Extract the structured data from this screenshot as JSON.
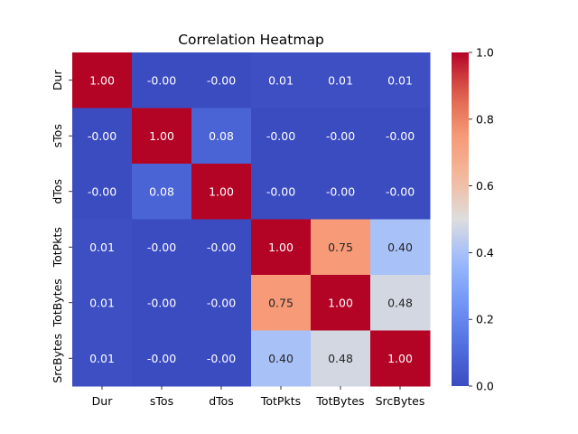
{
  "chart_data": {
    "type": "heatmap",
    "title": "Correlation Heatmap",
    "xlabel": "",
    "ylabel": "",
    "x_labels": [
      "Dur",
      "sTos",
      "dTos",
      "TotPkts",
      "TotBytes",
      "SrcBytes"
    ],
    "y_labels": [
      "Dur",
      "sTos",
      "dTos",
      "TotPkts",
      "TotBytes",
      "SrcBytes"
    ],
    "values": [
      [
        1.0,
        -0.0,
        -0.0,
        0.01,
        0.01,
        0.01
      ],
      [
        -0.0,
        1.0,
        0.08,
        -0.0,
        -0.0,
        -0.0
      ],
      [
        -0.0,
        0.08,
        1.0,
        -0.0,
        -0.0,
        -0.0
      ],
      [
        0.01,
        -0.0,
        -0.0,
        1.0,
        0.75,
        0.4
      ],
      [
        0.01,
        -0.0,
        -0.0,
        0.75,
        1.0,
        0.48
      ],
      [
        0.01,
        -0.0,
        -0.0,
        0.4,
        0.48,
        1.0
      ]
    ],
    "value_labels": [
      [
        "1.00",
        "-0.00",
        "-0.00",
        "0.01",
        "0.01",
        "0.01"
      ],
      [
        "-0.00",
        "1.00",
        "0.08",
        "-0.00",
        "-0.00",
        "-0.00"
      ],
      [
        "-0.00",
        "0.08",
        "1.00",
        "-0.00",
        "-0.00",
        "-0.00"
      ],
      [
        "0.01",
        "-0.00",
        "-0.00",
        "1.00",
        "0.75",
        "0.40"
      ],
      [
        "0.01",
        "-0.00",
        "-0.00",
        "0.75",
        "1.00",
        "0.48"
      ],
      [
        "0.01",
        "-0.00",
        "-0.00",
        "0.40",
        "0.48",
        "1.00"
      ]
    ],
    "colormap": "coolwarm",
    "vmin": 0.0,
    "vmax": 1.0,
    "colorbar_ticks": [
      "0.0",
      "0.2",
      "0.4",
      "0.6",
      "0.8",
      "1.0"
    ],
    "legend": "colorbar-right",
    "grid": false
  }
}
